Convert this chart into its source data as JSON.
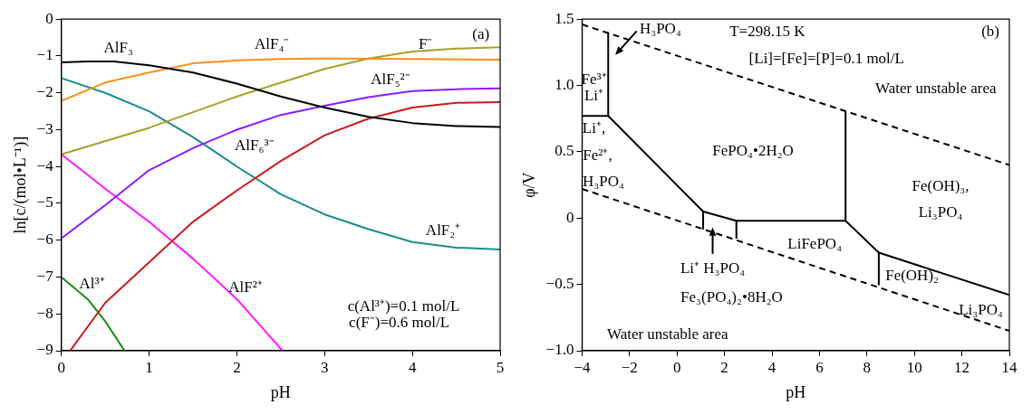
{
  "chart_data": [
    {
      "type": "line",
      "xlabel": "pH",
      "ylabel": "ln[c/(mol•L⁻¹)]",
      "xlim": [
        0,
        5
      ],
      "ylim": [
        -9,
        0
      ],
      "xticks": [
        0,
        1,
        2,
        3,
        4,
        5
      ],
      "yticks": [
        -9,
        -8,
        -7,
        -6,
        -5,
        -4,
        -3,
        -2,
        -1,
        0
      ],
      "grid": false,
      "legend": false,
      "series": [
        {
          "name": "AlF₃",
          "color": "#000000",
          "x": [
            0,
            0.3,
            0.6,
            1,
            1.5,
            2,
            2.5,
            3,
            3.5,
            4,
            4.5,
            5
          ],
          "values": [
            -1.17,
            -1.15,
            -1.15,
            -1.25,
            -1.45,
            -1.75,
            -2.1,
            -2.4,
            -2.65,
            -2.82,
            -2.9,
            -2.93
          ]
        },
        {
          "name": "AlF₄⁻",
          "color": "#ff8c1a",
          "x": [
            0,
            0.5,
            1,
            1.5,
            2,
            2.5,
            3,
            4,
            5
          ],
          "values": [
            -2.22,
            -1.72,
            -1.45,
            -1.2,
            -1.12,
            -1.08,
            -1.07,
            -1.08,
            -1.1
          ]
        },
        {
          "name": "F⁻",
          "color": "#a6a02a",
          "x": [
            0,
            1,
            2,
            3,
            3.5,
            4,
            4.5,
            5
          ],
          "values": [
            -3.67,
            -2.95,
            -2.1,
            -1.35,
            -1.07,
            -0.88,
            -0.8,
            -0.76
          ]
        },
        {
          "name": "AlF₅²⁻",
          "color": "#8c1aff",
          "x": [
            0,
            0.5,
            1,
            1.5,
            2,
            2.5,
            3,
            3.5,
            4,
            4.5,
            5
          ],
          "values": [
            -5.95,
            -5.05,
            -4.1,
            -3.5,
            -3.0,
            -2.6,
            -2.35,
            -2.12,
            -1.95,
            -1.9,
            -1.88
          ]
        },
        {
          "name": "AlF₆³⁻",
          "color": "#cc1a1a",
          "x": [
            0.1,
            0.5,
            1,
            1.5,
            2,
            2.5,
            3,
            3.5,
            4,
            4.5,
            5
          ],
          "values": [
            -9,
            -7.7,
            -6.6,
            -5.5,
            -4.65,
            -3.85,
            -3.15,
            -2.7,
            -2.4,
            -2.27,
            -2.25
          ]
        },
        {
          "name": "AlF₂⁺",
          "color": "#1a8c8c",
          "x": [
            0,
            0.5,
            1,
            1.5,
            2,
            2.5,
            3,
            3.5,
            4,
            4.5,
            5
          ],
          "values": [
            -1.6,
            -2.0,
            -2.5,
            -3.2,
            -4.0,
            -4.75,
            -5.3,
            -5.7,
            -6.05,
            -6.2,
            -6.25
          ]
        },
        {
          "name": "AlF²⁺",
          "color": "#ff1aff",
          "x": [
            0,
            0.5,
            1,
            1.5,
            2,
            2.52
          ],
          "values": [
            -3.67,
            -4.6,
            -5.5,
            -6.5,
            -7.6,
            -9
          ]
        },
        {
          "name": "Al³⁺",
          "color": "#1a8c1a",
          "x": [
            0,
            0.3,
            0.5,
            0.72
          ],
          "values": [
            -7,
            -7.6,
            -8.2,
            -9
          ]
        }
      ],
      "annotations": [
        "(a)",
        "c(Al³⁺)=0.1 mol/L",
        "c(F⁻)=0.6 mol/L"
      ]
    },
    {
      "type": "line",
      "xlabel": "pH",
      "ylabel": "φ/V",
      "xlim": [
        -4,
        14
      ],
      "ylim": [
        -1,
        1.5
      ],
      "xticks": [
        -4,
        -2,
        0,
        2,
        4,
        6,
        8,
        10,
        12,
        14
      ],
      "yticks": [
        {
          "value": -1,
          "label": "−1.0"
        },
        {
          "value": -0.5,
          "label": "−0.5"
        },
        0,
        {
          "value": 0.5,
          "label": "0.5"
        },
        {
          "value": 1,
          "label": "1.0"
        },
        {
          "value": 1.5,
          "label": "1.5"
        }
      ],
      "grid": false,
      "legend": false,
      "series": [
        {
          "color": "#000000",
          "line_style": "dashed",
          "x": [
            -4,
            14
          ],
          "values": [
            1.46,
            0.4
          ]
        },
        {
          "color": "#000000",
          "line_style": "dashed",
          "x": [
            -4,
            14
          ],
          "values": [
            0.22,
            -0.85
          ]
        },
        {
          "color": "#000000",
          "x": [
            -4,
            -2.9,
            1.1,
            2.5,
            7.1,
            8.5,
            14
          ],
          "values": [
            0.77,
            0.77,
            0.05,
            -0.02,
            -0.02,
            -0.26,
            -0.58
          ]
        },
        {
          "color": "#000000",
          "x": [
            -2.9,
            -2.9
          ],
          "values": [
            0.77,
            1.4
          ]
        },
        {
          "color": "#000000",
          "x": [
            1.1,
            1.1
          ],
          "values": [
            0.05,
            -0.08
          ]
        },
        {
          "color": "#000000",
          "x": [
            2.5,
            2.5
          ],
          "values": [
            -0.02,
            -0.15
          ]
        },
        {
          "color": "#000000",
          "x": [
            7.1,
            7.1
          ],
          "values": [
            -0.02,
            0.8
          ]
        },
        {
          "color": "#000000",
          "x": [
            8.5,
            8.5
          ],
          "values": [
            -0.26,
            -0.5
          ]
        }
      ],
      "annotations": [
        "H₃PO₄",
        "T=298.15 K",
        "[Li]=[Fe]=[P]=0.1 mol/L",
        "(b)",
        "Fe³⁺",
        "Li⁺",
        "Water unstable area",
        "FePO₄•2H₂O",
        "Li⁺,",
        "Fe²⁺,",
        "H₃PO₄",
        "Fe(OH)₃,",
        "Li₃PO₄",
        "LiFePO₄",
        "Fe(OH)₂",
        "Li₃PO₄",
        "Li⁺ H₃PO₄",
        "Fe₃(PO₄)₂•8H₂O",
        "Water unstable area"
      ]
    }
  ]
}
